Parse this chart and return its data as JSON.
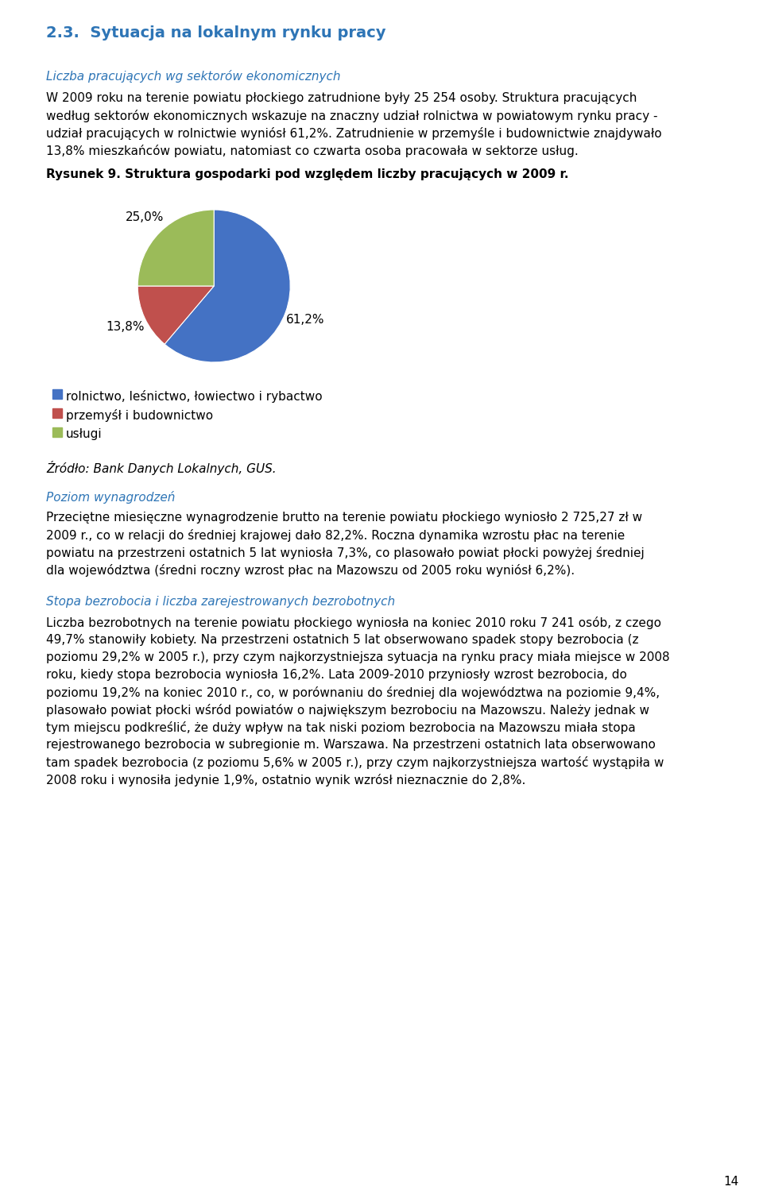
{
  "page_number": "14",
  "section_title": "2.3.  Sytuacja na lokalnym rynku pracy",
  "section_title_color": "#2E75B6",
  "subsection1_title": "Liczba pracujących wg sektorów ekonomicznych",
  "subsection1_color": "#2E75B6",
  "para1_lines": [
    "W 2009 roku na terenie powiatu płockiego zatrudnione były 25 254 osoby. Struktura pracujących",
    "według sektorów ekonomicznych wskazuje na znaczny udział rolnictwa w powiatowym rynku pracy -",
    "udział pracujących w rolnictwie wyniósł 61,2%. Zatrudnienie w przemyśle i budownictwie znajdywało",
    "13,8% mieszkańców powiatu, natomiast co czwarta osoba pracowała w sektorze usług."
  ],
  "figure_caption": "Rysunek 9. Struktura gospodarki pod względem liczby pracujących w 2009 r.",
  "pie_values": [
    61.2,
    13.8,
    25.0
  ],
  "pie_colors": [
    "#4472C4",
    "#C0504D",
    "#9BBB59"
  ],
  "pie_labels": [
    "61,2%",
    "13,8%",
    "25,0%"
  ],
  "legend_labels": [
    "rolnictwo, leśnictwo, łowiectwo i rybactwo",
    "przemyśł i budownictwo",
    "usługi"
  ],
  "source_text": "Źródło: Bank Danych Lokalnych, GUS.",
  "subsection2_title": "Poziom wynagrodzeń",
  "subsection2_color": "#2E75B6",
  "para2_lines": [
    "Przeciętne miesięczne wynagrodzenie brutto na terenie powiatu płockiego wyniosło 2 725,27 zł w",
    "2009 r., co w relacji do średniej krajowej dało 82,2%. Roczna dynamika wzrostu płac na terenie",
    "powiatu na przestrzeni ostatnich 5 lat wyniosła 7,3%, co plasowało powiat płocki powyżej średniej",
    "dla województwa (średni roczny wzrost płac na Mazowszu od 2005 roku wyniósł 6,2%)."
  ],
  "subsection3_title": "Stopa bezrobocia i liczba zarejestrowanych bezrobotnych",
  "subsection3_color": "#2E75B6",
  "para3_lines": [
    "Liczba bezrobotnych na terenie powiatu płockiego wyniosła na koniec 2010 roku 7 241 osób, z czego",
    "49,7% stanowiły kobiety. Na przestrzeni ostatnich 5 lat obserwowano spadek stopy bezrobocia (z",
    "poziomu 29,2% w 2005 r.), przy czym najkorzystniejsza sytuacja na rynku pracy miała miejsce w 2008",
    "roku, kiedy stopa bezrobocia wyniosła 16,2%. Lata 2009-2010 przyniosły wzrost bezrobocia, do",
    "poziomu 19,2% na koniec 2010 r., co, w porównaniu do średniej dla województwa na poziomie 9,4%,",
    "plasowało powiat płocki wśród powiatów o największym bezrobociu na Mazowszu. Należy jednak w",
    "tym miejscu podkreślić, że duży wpływ na tak niski poziom bezrobocia na Mazowszu miała stopa",
    "rejestrowanego bezrobocia w subregionie m. Warszawa. Na przestrzeni ostatnich lata obserwowano",
    "tam spadek bezrobocia (z poziomu 5,6% w 2005 r.), przy czym najkorzystniejsza wartość wystąpiła w",
    "2008 roku i wynosiła jedynie 1,9%, ostatnio wynik wzrósł nieznacznie do 2,8%."
  ],
  "background_color": "#FFFFFF",
  "text_color": "#000000"
}
